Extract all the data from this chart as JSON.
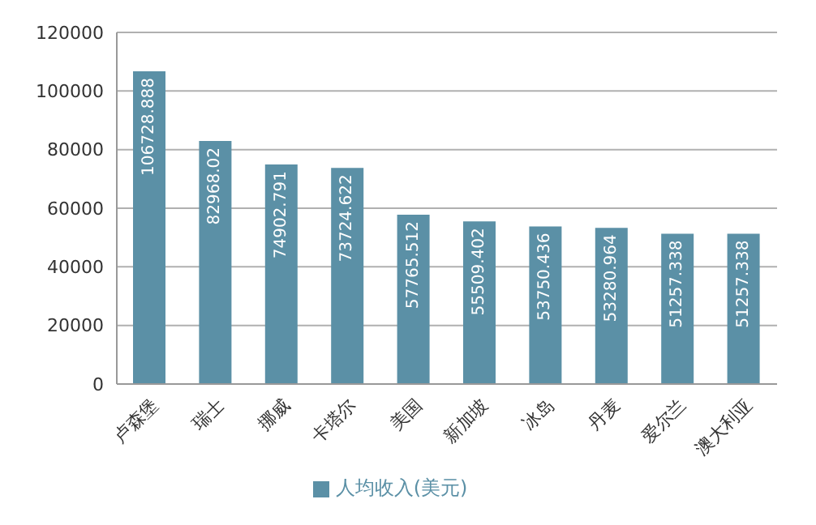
{
  "chart_data": {
    "type": "bar",
    "categories": [
      "卢森堡",
      "瑞士",
      "挪威",
      "卡塔尔",
      "美国",
      "新加坡",
      "冰岛",
      "丹麦",
      "爱尔兰",
      "澳大利亚"
    ],
    "series": [
      {
        "name": "人均收入(美元)",
        "color": "#5b90a6",
        "values": [
          106728.888,
          82968.02,
          74902.791,
          73724.622,
          57765.512,
          55509.402,
          53750.436,
          53280.964,
          51257.338,
          51257.338
        ]
      }
    ],
    "ylim": [
      0,
      120000
    ],
    "yticks": [
      0,
      20000,
      40000,
      60000,
      80000,
      100000,
      120000
    ],
    "grid": "y",
    "legend": "bottom",
    "data_labels": true
  }
}
